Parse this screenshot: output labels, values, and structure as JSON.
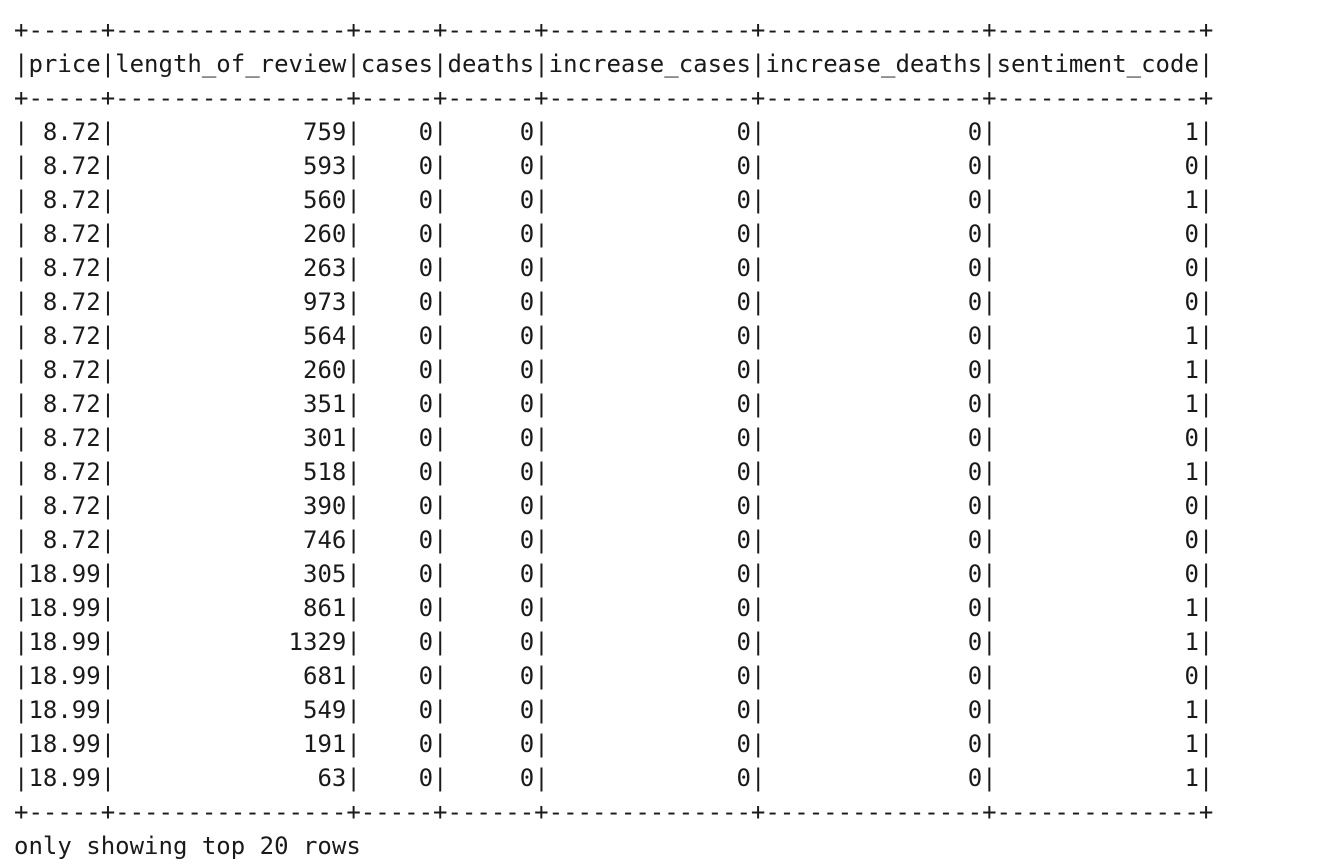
{
  "table": {
    "columns": [
      "price",
      "length_of_review",
      "cases",
      "deaths",
      "increase_cases",
      "increase_deaths",
      "sentiment_code"
    ],
    "rows": [
      [
        "8.72",
        "759",
        "0",
        "0",
        "0",
        "0",
        "1"
      ],
      [
        "8.72",
        "593",
        "0",
        "0",
        "0",
        "0",
        "0"
      ],
      [
        "8.72",
        "560",
        "0",
        "0",
        "0",
        "0",
        "1"
      ],
      [
        "8.72",
        "260",
        "0",
        "0",
        "0",
        "0",
        "0"
      ],
      [
        "8.72",
        "263",
        "0",
        "0",
        "0",
        "0",
        "0"
      ],
      [
        "8.72",
        "973",
        "0",
        "0",
        "0",
        "0",
        "0"
      ],
      [
        "8.72",
        "564",
        "0",
        "0",
        "0",
        "0",
        "1"
      ],
      [
        "8.72",
        "260",
        "0",
        "0",
        "0",
        "0",
        "1"
      ],
      [
        "8.72",
        "351",
        "0",
        "0",
        "0",
        "0",
        "1"
      ],
      [
        "8.72",
        "301",
        "0",
        "0",
        "0",
        "0",
        "0"
      ],
      [
        "8.72",
        "518",
        "0",
        "0",
        "0",
        "0",
        "1"
      ],
      [
        "8.72",
        "390",
        "0",
        "0",
        "0",
        "0",
        "0"
      ],
      [
        "8.72",
        "746",
        "0",
        "0",
        "0",
        "0",
        "0"
      ],
      [
        "18.99",
        "305",
        "0",
        "0",
        "0",
        "0",
        "0"
      ],
      [
        "18.99",
        "861",
        "0",
        "0",
        "0",
        "0",
        "1"
      ],
      [
        "18.99",
        "1329",
        "0",
        "0",
        "0",
        "0",
        "1"
      ],
      [
        "18.99",
        "681",
        "0",
        "0",
        "0",
        "0",
        "0"
      ],
      [
        "18.99",
        "549",
        "0",
        "0",
        "0",
        "0",
        "1"
      ],
      [
        "18.99",
        "191",
        "0",
        "0",
        "0",
        "0",
        "1"
      ],
      [
        "18.99",
        "63",
        "0",
        "0",
        "0",
        "0",
        "1"
      ]
    ]
  },
  "footer": {
    "text": "only showing top 20 rows"
  }
}
